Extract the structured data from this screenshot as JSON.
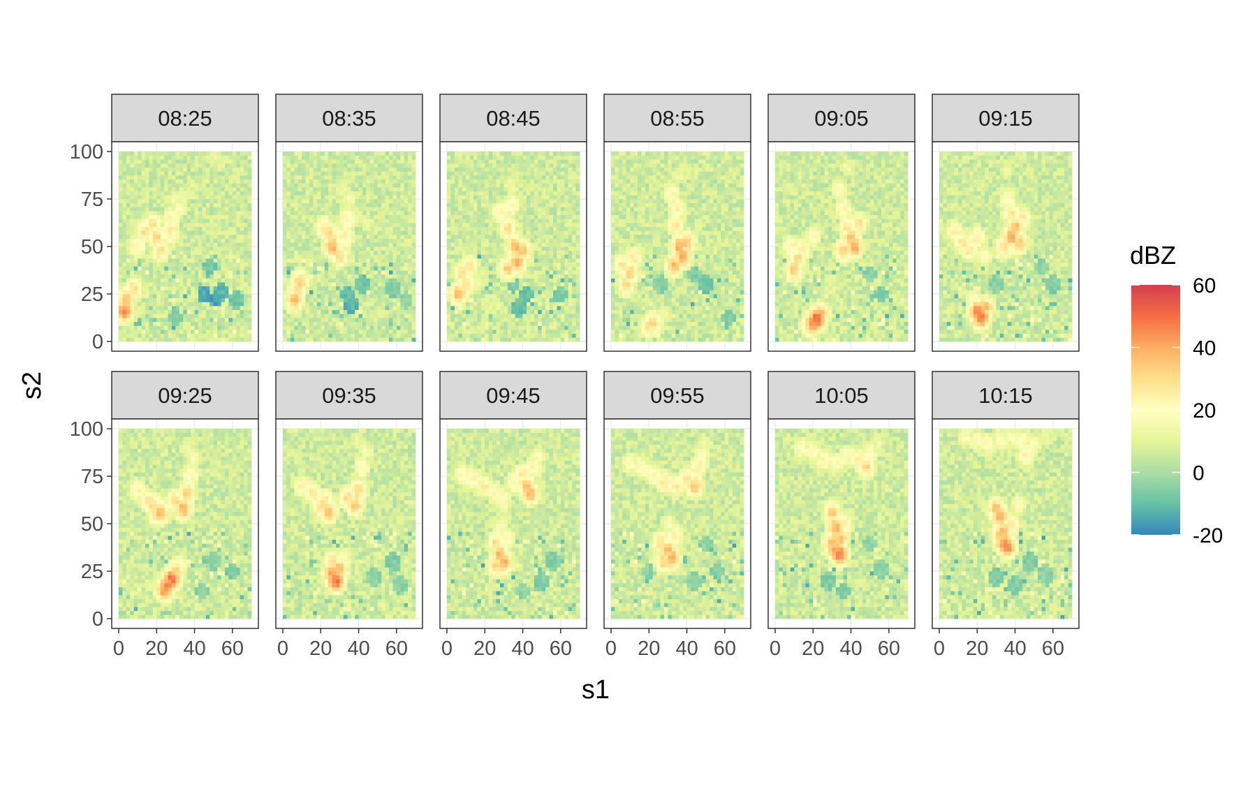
{
  "chart_data": {
    "type": "heatmap",
    "title": "",
    "xlabel": "s1",
    "ylabel": "s2",
    "xlim": [
      0,
      70
    ],
    "ylim": [
      0,
      100
    ],
    "x_ticks": [
      0,
      20,
      40,
      60
    ],
    "y_ticks": [
      0,
      25,
      50,
      75,
      100
    ],
    "grid": true,
    "legend_position": "right",
    "colorbar": {
      "title": "dBZ",
      "range": [
        -20,
        60
      ],
      "ticks": [
        -20,
        0,
        20,
        40,
        60
      ],
      "colors": [
        "#3288bd",
        "#66c2a5",
        "#abdda4",
        "#e6f598",
        "#ffffbf",
        "#fee08b",
        "#fdae61",
        "#f46d43",
        "#d53e4f"
      ]
    },
    "facet_layout": {
      "rows": 2,
      "cols": 6
    },
    "facets": [
      {
        "label": "08:25",
        "cells": [
          [
            3,
            16,
            46
          ],
          [
            4,
            22,
            38
          ],
          [
            8,
            28,
            30
          ],
          [
            10,
            50,
            25
          ],
          [
            14,
            58,
            30
          ],
          [
            18,
            62,
            29
          ],
          [
            20,
            55,
            32
          ],
          [
            22,
            48,
            30
          ],
          [
            27,
            58,
            28
          ],
          [
            28,
            65,
            24
          ],
          [
            30,
            75,
            14
          ],
          [
            32,
            70,
            18
          ],
          [
            33,
            76,
            14
          ],
          [
            38,
            80,
            10
          ],
          [
            50,
            97,
            12
          ],
          [
            54,
            95,
            12
          ],
          [
            45,
            25,
            -14
          ],
          [
            52,
            23,
            -16
          ],
          [
            54,
            26,
            -12
          ],
          [
            48,
            40,
            -8
          ],
          [
            30,
            12,
            -4
          ],
          [
            62,
            22,
            -8
          ]
        ]
      },
      {
        "label": "08:35",
        "cells": [
          [
            8,
            28,
            32
          ],
          [
            9,
            32,
            34
          ],
          [
            6,
            22,
            38
          ],
          [
            22,
            60,
            28
          ],
          [
            25,
            57,
            30
          ],
          [
            26,
            50,
            40
          ],
          [
            30,
            45,
            30
          ],
          [
            33,
            55,
            26
          ],
          [
            34,
            65,
            24
          ],
          [
            35,
            75,
            16
          ],
          [
            32,
            80,
            14
          ],
          [
            40,
            66,
            12
          ],
          [
            44,
            63,
            12
          ],
          [
            36,
            20,
            -12
          ],
          [
            34,
            25,
            -10
          ],
          [
            42,
            30,
            -8
          ],
          [
            58,
            28,
            -6
          ],
          [
            65,
            22,
            -4
          ]
        ]
      },
      {
        "label": "08:45",
        "cells": [
          [
            8,
            36,
            30
          ],
          [
            10,
            30,
            32
          ],
          [
            6,
            25,
            38
          ],
          [
            12,
            40,
            28
          ],
          [
            28,
            68,
            26
          ],
          [
            32,
            60,
            30
          ],
          [
            34,
            72,
            24
          ],
          [
            34,
            82,
            14
          ],
          [
            36,
            50,
            38
          ],
          [
            37,
            42,
            40
          ],
          [
            40,
            48,
            36
          ],
          [
            32,
            38,
            34
          ],
          [
            18,
            32,
            14
          ],
          [
            24,
            20,
            10
          ],
          [
            20,
            10,
            12
          ],
          [
            35,
            30,
            -6
          ],
          [
            38,
            18,
            -10
          ],
          [
            42,
            25,
            -10
          ],
          [
            60,
            25,
            -6
          ]
        ]
      },
      {
        "label": "08:55",
        "cells": [
          [
            6,
            40,
            28
          ],
          [
            10,
            36,
            34
          ],
          [
            8,
            30,
            32
          ],
          [
            12,
            44,
            26
          ],
          [
            32,
            78,
            24
          ],
          [
            35,
            70,
            26
          ],
          [
            34,
            62,
            28
          ],
          [
            36,
            50,
            40
          ],
          [
            38,
            45,
            42
          ],
          [
            33,
            40,
            38
          ],
          [
            40,
            52,
            36
          ],
          [
            36,
            88,
            14
          ],
          [
            40,
            90,
            12
          ],
          [
            20,
            8,
            30
          ],
          [
            22,
            10,
            34
          ],
          [
            28,
            15,
            14
          ],
          [
            44,
            35,
            -6
          ],
          [
            50,
            30,
            -8
          ],
          [
            26,
            30,
            -4
          ],
          [
            62,
            12,
            -6
          ]
        ]
      },
      {
        "label": "09:05",
        "cells": [
          [
            8,
            50,
            24
          ],
          [
            12,
            44,
            30
          ],
          [
            10,
            38,
            34
          ],
          [
            14,
            48,
            28
          ],
          [
            20,
            55,
            22
          ],
          [
            34,
            80,
            20
          ],
          [
            36,
            70,
            24
          ],
          [
            38,
            60,
            28
          ],
          [
            40,
            55,
            36
          ],
          [
            42,
            50,
            40
          ],
          [
            36,
            48,
            34
          ],
          [
            44,
            62,
            30
          ],
          [
            38,
            92,
            14
          ],
          [
            20,
            10,
            48
          ],
          [
            22,
            12,
            52
          ],
          [
            24,
            14,
            40
          ],
          [
            18,
            8,
            30
          ],
          [
            30,
            30,
            10
          ],
          [
            50,
            35,
            -4
          ],
          [
            56,
            25,
            -6
          ]
        ]
      },
      {
        "label": "09:15",
        "cells": [
          [
            8,
            58,
            24
          ],
          [
            12,
            52,
            28
          ],
          [
            16,
            48,
            26
          ],
          [
            20,
            55,
            26
          ],
          [
            24,
            45,
            22
          ],
          [
            36,
            75,
            22
          ],
          [
            38,
            68,
            28
          ],
          [
            40,
            60,
            38
          ],
          [
            38,
            55,
            40
          ],
          [
            42,
            52,
            36
          ],
          [
            34,
            50,
            30
          ],
          [
            44,
            65,
            26
          ],
          [
            36,
            90,
            14
          ],
          [
            20,
            16,
            46
          ],
          [
            22,
            13,
            50
          ],
          [
            24,
            18,
            38
          ],
          [
            18,
            22,
            20
          ],
          [
            54,
            40,
            -4
          ],
          [
            60,
            30,
            -6
          ],
          [
            30,
            30,
            -4
          ]
        ]
      },
      {
        "label": "09:25",
        "cells": [
          [
            10,
            68,
            24
          ],
          [
            16,
            62,
            28
          ],
          [
            20,
            55,
            32
          ],
          [
            22,
            56,
            38
          ],
          [
            18,
            60,
            30
          ],
          [
            30,
            62,
            32
          ],
          [
            34,
            58,
            40
          ],
          [
            36,
            66,
            34
          ],
          [
            38,
            76,
            24
          ],
          [
            40,
            85,
            18
          ],
          [
            36,
            90,
            14
          ],
          [
            26,
            18,
            46
          ],
          [
            28,
            21,
            50
          ],
          [
            24,
            15,
            44
          ],
          [
            30,
            25,
            34
          ],
          [
            32,
            28,
            22
          ],
          [
            50,
            30,
            -4
          ],
          [
            60,
            25,
            -6
          ],
          [
            44,
            15,
            -4
          ]
        ]
      },
      {
        "label": "09:35",
        "cells": [
          [
            10,
            70,
            24
          ],
          [
            16,
            66,
            28
          ],
          [
            22,
            62,
            30
          ],
          [
            24,
            56,
            38
          ],
          [
            20,
            60,
            30
          ],
          [
            34,
            64,
            30
          ],
          [
            38,
            60,
            36
          ],
          [
            40,
            68,
            32
          ],
          [
            42,
            80,
            22
          ],
          [
            44,
            88,
            16
          ],
          [
            40,
            94,
            12
          ],
          [
            26,
            24,
            44
          ],
          [
            28,
            20,
            50
          ],
          [
            30,
            26,
            38
          ],
          [
            26,
            30,
            30
          ],
          [
            32,
            32,
            20
          ],
          [
            48,
            22,
            -4
          ],
          [
            58,
            30,
            -6
          ],
          [
            62,
            18,
            -4
          ]
        ]
      },
      {
        "label": "09:45",
        "cells": [
          [
            8,
            76,
            22
          ],
          [
            14,
            74,
            24
          ],
          [
            20,
            70,
            26
          ],
          [
            26,
            66,
            24
          ],
          [
            30,
            62,
            22
          ],
          [
            36,
            72,
            26
          ],
          [
            40,
            76,
            28
          ],
          [
            42,
            70,
            36
          ],
          [
            44,
            66,
            38
          ],
          [
            46,
            80,
            24
          ],
          [
            48,
            86,
            18
          ],
          [
            26,
            40,
            30
          ],
          [
            28,
            34,
            38
          ],
          [
            30,
            30,
            40
          ],
          [
            26,
            28,
            34
          ],
          [
            32,
            42,
            22
          ],
          [
            28,
            48,
            18
          ],
          [
            50,
            20,
            -6
          ],
          [
            56,
            30,
            -6
          ],
          [
            40,
            15,
            -4
          ]
        ]
      },
      {
        "label": "09:55",
        "cells": [
          [
            10,
            82,
            20
          ],
          [
            16,
            80,
            22
          ],
          [
            22,
            76,
            24
          ],
          [
            28,
            72,
            26
          ],
          [
            34,
            70,
            26
          ],
          [
            40,
            74,
            30
          ],
          [
            44,
            70,
            36
          ],
          [
            46,
            80,
            26
          ],
          [
            48,
            86,
            20
          ],
          [
            50,
            92,
            14
          ],
          [
            26,
            40,
            30
          ],
          [
            30,
            36,
            38
          ],
          [
            32,
            32,
            40
          ],
          [
            28,
            30,
            34
          ],
          [
            34,
            44,
            24
          ],
          [
            30,
            50,
            18
          ],
          [
            50,
            40,
            -4
          ],
          [
            56,
            25,
            -6
          ],
          [
            44,
            20,
            -4
          ],
          [
            20,
            25,
            -4
          ]
        ]
      },
      {
        "label": "10:05",
        "cells": [
          [
            14,
            90,
            20
          ],
          [
            20,
            88,
            22
          ],
          [
            26,
            84,
            24
          ],
          [
            32,
            82,
            22
          ],
          [
            38,
            86,
            24
          ],
          [
            44,
            84,
            26
          ],
          [
            48,
            80,
            32
          ],
          [
            50,
            88,
            20
          ],
          [
            54,
            92,
            14
          ],
          [
            30,
            56,
            34
          ],
          [
            32,
            48,
            40
          ],
          [
            34,
            42,
            38
          ],
          [
            32,
            36,
            44
          ],
          [
            34,
            34,
            50
          ],
          [
            30,
            40,
            36
          ],
          [
            36,
            50,
            28
          ],
          [
            50,
            40,
            -4
          ],
          [
            28,
            20,
            -6
          ],
          [
            36,
            15,
            -6
          ],
          [
            56,
            26,
            -4
          ]
        ]
      },
      {
        "label": "10:15",
        "cells": [
          [
            14,
            96,
            18
          ],
          [
            20,
            94,
            20
          ],
          [
            26,
            92,
            22
          ],
          [
            32,
            94,
            20
          ],
          [
            38,
            96,
            18
          ],
          [
            44,
            94,
            22
          ],
          [
            46,
            86,
            26
          ],
          [
            50,
            92,
            18
          ],
          [
            56,
            96,
            14
          ],
          [
            30,
            58,
            36
          ],
          [
            32,
            54,
            40
          ],
          [
            34,
            46,
            38
          ],
          [
            34,
            40,
            44
          ],
          [
            36,
            38,
            46
          ],
          [
            32,
            44,
            34
          ],
          [
            38,
            50,
            26
          ],
          [
            42,
            60,
            20
          ],
          [
            48,
            30,
            -6
          ],
          [
            30,
            22,
            -6
          ],
          [
            40,
            18,
            -6
          ],
          [
            56,
            24,
            -4
          ]
        ]
      }
    ]
  }
}
